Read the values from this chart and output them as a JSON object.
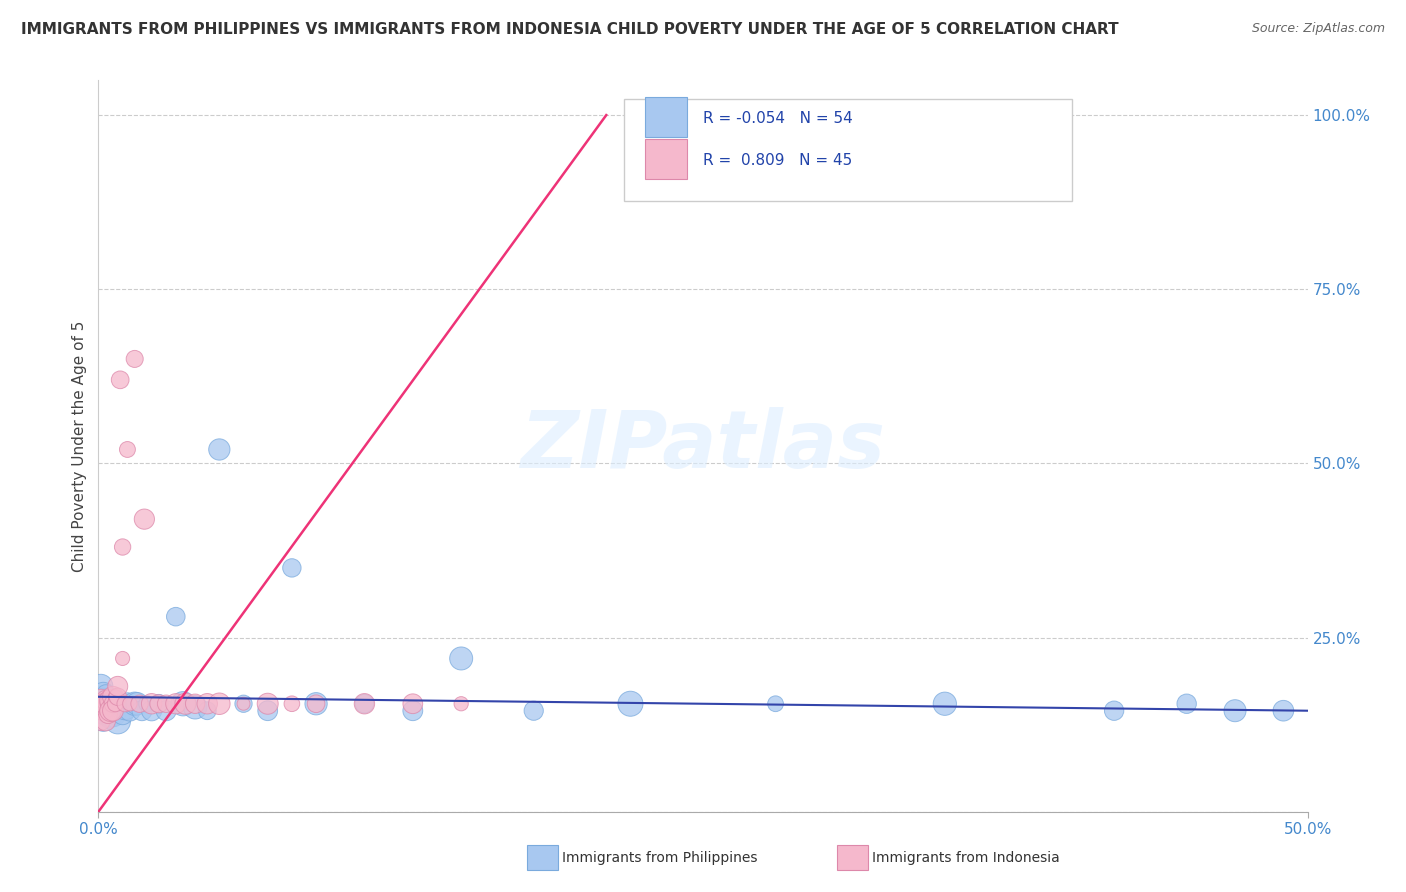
{
  "title": "IMMIGRANTS FROM PHILIPPINES VS IMMIGRANTS FROM INDONESIA CHILD POVERTY UNDER THE AGE OF 5 CORRELATION CHART",
  "source": "Source: ZipAtlas.com",
  "ylabel": "Child Poverty Under the Age of 5",
  "watermark": "ZIPatlas",
  "color_philippines": "#a8c8f0",
  "color_indonesia": "#f5b8cc",
  "color_line_philippines": "#3344aa",
  "color_line_indonesia": "#ee3377",
  "philippines_x": [
    0.001,
    0.001,
    0.001,
    0.002,
    0.002,
    0.002,
    0.002,
    0.003,
    0.003,
    0.003,
    0.003,
    0.004,
    0.004,
    0.004,
    0.005,
    0.005,
    0.005,
    0.006,
    0.006,
    0.007,
    0.007,
    0.008,
    0.009,
    0.01,
    0.011,
    0.012,
    0.013,
    0.015,
    0.016,
    0.018,
    0.02,
    0.022,
    0.025,
    0.028,
    0.032,
    0.035,
    0.04,
    0.045,
    0.05,
    0.06,
    0.07,
    0.08,
    0.09,
    0.11,
    0.13,
    0.15,
    0.18,
    0.22,
    0.28,
    0.35,
    0.42,
    0.45,
    0.47,
    0.49
  ],
  "philippines_y": [
    0.16,
    0.15,
    0.18,
    0.17,
    0.14,
    0.16,
    0.13,
    0.15,
    0.17,
    0.16,
    0.14,
    0.15,
    0.16,
    0.13,
    0.15,
    0.14,
    0.16,
    0.15,
    0.14,
    0.16,
    0.15,
    0.13,
    0.15,
    0.14,
    0.15,
    0.16,
    0.145,
    0.155,
    0.155,
    0.145,
    0.155,
    0.145,
    0.155,
    0.145,
    0.28,
    0.155,
    0.15,
    0.145,
    0.52,
    0.155,
    0.145,
    0.35,
    0.155,
    0.155,
    0.145,
    0.22,
    0.145,
    0.155,
    0.155,
    0.155,
    0.145,
    0.155,
    0.145,
    0.145
  ],
  "indonesia_x": [
    0.001,
    0.001,
    0.001,
    0.002,
    0.002,
    0.003,
    0.003,
    0.003,
    0.004,
    0.004,
    0.004,
    0.005,
    0.005,
    0.005,
    0.006,
    0.006,
    0.006,
    0.007,
    0.007,
    0.008,
    0.008,
    0.009,
    0.01,
    0.01,
    0.011,
    0.012,
    0.013,
    0.015,
    0.017,
    0.019,
    0.022,
    0.025,
    0.028,
    0.032,
    0.036,
    0.04,
    0.045,
    0.05,
    0.06,
    0.07,
    0.08,
    0.09,
    0.11,
    0.13,
    0.15
  ],
  "indonesia_y": [
    0.16,
    0.155,
    0.13,
    0.155,
    0.145,
    0.16,
    0.155,
    0.13,
    0.16,
    0.155,
    0.14,
    0.155,
    0.16,
    0.145,
    0.165,
    0.155,
    0.145,
    0.165,
    0.155,
    0.165,
    0.18,
    0.62,
    0.22,
    0.38,
    0.155,
    0.52,
    0.155,
    0.65,
    0.155,
    0.42,
    0.155,
    0.155,
    0.155,
    0.155,
    0.155,
    0.155,
    0.155,
    0.155,
    0.155,
    0.155,
    0.155,
    0.155,
    0.155,
    0.155,
    0.155
  ],
  "indo_line_x": [
    0.0,
    0.21
  ],
  "indo_line_y": [
    0.0,
    1.0
  ],
  "ph_line_x": [
    0.0,
    0.5
  ],
  "ph_line_y": [
    0.165,
    0.145
  ],
  "xlim": [
    0.0,
    0.5
  ],
  "ylim": [
    0.0,
    1.05
  ],
  "ytick_vals": [
    0.0,
    0.25,
    0.5,
    0.75,
    1.0
  ],
  "ytick_labels_right": [
    "",
    "25.0%",
    "50.0%",
    "75.0%",
    "100.0%"
  ]
}
